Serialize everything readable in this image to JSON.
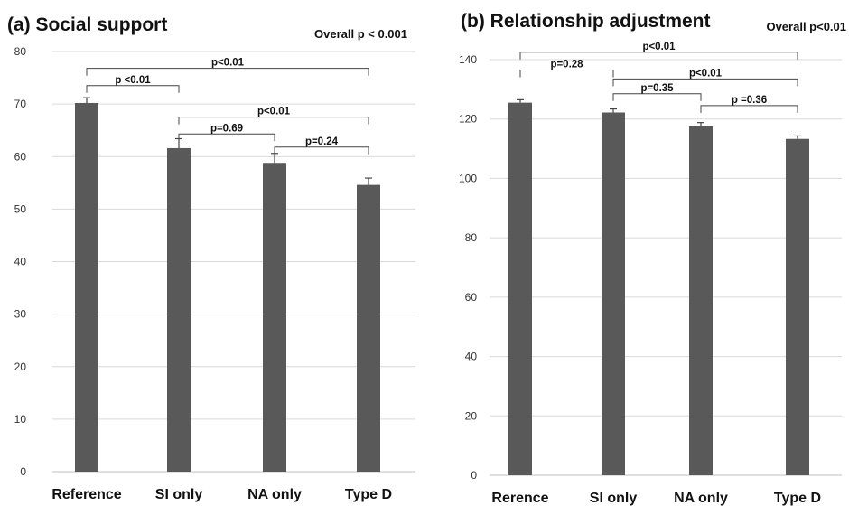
{
  "chart_data": [
    {
      "type": "bar",
      "title": "(a) Social support",
      "overall": "Overall p < 0.001",
      "categories": [
        "Reference",
        "SI only",
        "NA only",
        "Type D"
      ],
      "values": [
        70.2,
        61.6,
        58.8,
        54.6
      ],
      "errors": [
        1.0,
        1.8,
        1.8,
        1.3
      ],
      "ylim": [
        0,
        80
      ],
      "yticks": [
        0,
        10,
        20,
        30,
        40,
        50,
        60,
        70,
        80
      ],
      "grid": true,
      "comparisons": [
        {
          "from": 0,
          "to": 1,
          "label": "p <0.01",
          "y": 73.5
        },
        {
          "from": 0,
          "to": 3,
          "label": "p<0.01",
          "y": 76.8
        },
        {
          "from": 1,
          "to": 3,
          "label": "p<0.01",
          "y": 67.5
        },
        {
          "from": 1,
          "to": 2,
          "label": "p=0.69",
          "y": 64.3
        },
        {
          "from": 2,
          "to": 3,
          "label": "p=0.24",
          "y": 61.8
        }
      ]
    },
    {
      "type": "bar",
      "title": "(b) Relationship adjustment",
      "overall": "Overall p<0.01",
      "categories": [
        "Rerence",
        "SI only",
        "NA only",
        "Type D"
      ],
      "values": [
        125.5,
        122.2,
        117.6,
        113.3
      ],
      "errors": [
        1.0,
        1.2,
        1.2,
        1.0
      ],
      "ylim": [
        0,
        140
      ],
      "yticks": [
        0,
        20,
        40,
        60,
        80,
        100,
        120,
        140
      ],
      "grid": true,
      "comparisons": [
        {
          "from": 0,
          "to": 3,
          "label": "p<0.01",
          "y": 142.5
        },
        {
          "from": 0,
          "to": 1,
          "label": "p=0.28",
          "y": 136.5
        },
        {
          "from": 1,
          "to": 3,
          "label": "p<0.01",
          "y": 133.5
        },
        {
          "from": 1,
          "to": 2,
          "label": "p=0.35",
          "y": 128.5
        },
        {
          "from": 2,
          "to": 3,
          "label": "p =0.36",
          "y": 124.5
        }
      ]
    }
  ]
}
